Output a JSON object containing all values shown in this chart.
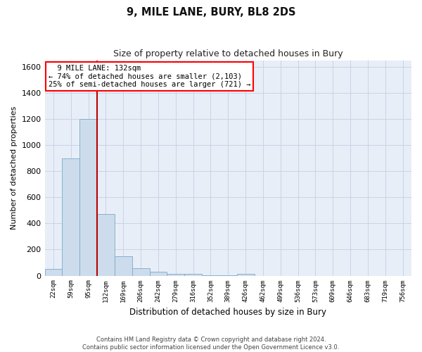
{
  "title": "9, MILE LANE, BURY, BL8 2DS",
  "subtitle": "Size of property relative to detached houses in Bury",
  "xlabel": "Distribution of detached houses by size in Bury",
  "ylabel": "Number of detached properties",
  "footer_line1": "Contains HM Land Registry data © Crown copyright and database right 2024.",
  "footer_line2": "Contains public sector information licensed under the Open Government Licence v3.0.",
  "annotation_line1": "  9 MILE LANE: 132sqm  ",
  "annotation_line2": "← 74% of detached houses are smaller (2,103)",
  "annotation_line3": "25% of semi-detached houses are larger (721) →",
  "bar_color": "#ccdcec",
  "bar_edge_color": "#7aaac8",
  "vline_color": "#bb0000",
  "vline_index": 2.5,
  "categories": [
    "22sqm",
    "59sqm",
    "95sqm",
    "132sqm",
    "169sqm",
    "206sqm",
    "242sqm",
    "279sqm",
    "316sqm",
    "352sqm",
    "389sqm",
    "426sqm",
    "462sqm",
    "499sqm",
    "536sqm",
    "573sqm",
    "609sqm",
    "646sqm",
    "683sqm",
    "719sqm",
    "756sqm"
  ],
  "values": [
    50,
    900,
    1200,
    470,
    150,
    55,
    30,
    15,
    12,
    5,
    2,
    13,
    0,
    0,
    0,
    0,
    0,
    0,
    0,
    0,
    0
  ],
  "ylim": [
    0,
    1650
  ],
  "yticks": [
    0,
    200,
    400,
    600,
    800,
    1000,
    1200,
    1400,
    1600
  ],
  "grid_color": "#c8d4e4",
  "background_color": "#e8eef8"
}
